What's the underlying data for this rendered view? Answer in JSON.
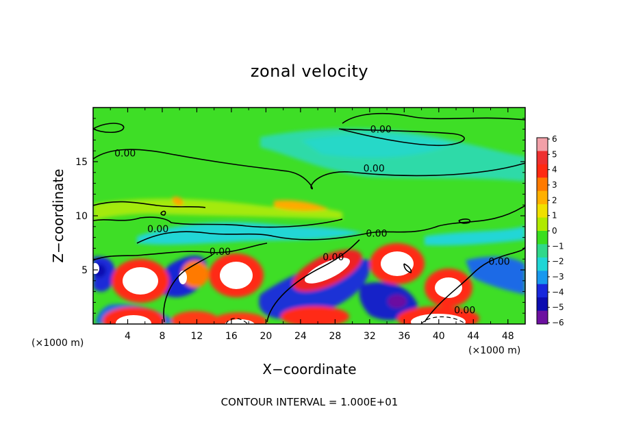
{
  "chart_data": {
    "type": "heatmap",
    "title": "zonal velocity",
    "xlabel": "X−coordinate",
    "ylabel": "Z−coordinate",
    "x_unit_left": "(×1000 m)",
    "x_unit_right": "(×1000 m)",
    "xlim": [
      0,
      50
    ],
    "ylim": [
      0,
      20
    ],
    "x_ticks": [
      4,
      8,
      12,
      16,
      20,
      24,
      28,
      32,
      36,
      40,
      44,
      48
    ],
    "y_ticks": [
      5,
      10,
      15
    ],
    "colorbar": {
      "min": -6,
      "max": 6,
      "ticks": [
        6,
        5,
        4,
        3,
        2,
        1,
        0,
        -1,
        -2,
        -3,
        -4,
        -5,
        -6
      ],
      "tick_labels": [
        "6",
        "5",
        "4",
        "3",
        "2",
        "1",
        "0",
        "−1",
        "−2",
        "−3",
        "−4",
        "−5",
        "−6"
      ],
      "colors": [
        "#f2a0a8",
        "#ee3030",
        "#ff2a12",
        "#ff7a00",
        "#ffb000",
        "#f0e000",
        "#b0ea00",
        "#3ade1e",
        "#30d88a",
        "#20d6d6",
        "#1898ee",
        "#1828dc",
        "#0c0cb0",
        "#6c10a0"
      ]
    },
    "contour_labels": [
      {
        "text": "0.00",
        "x": 33.3,
        "y": 18.0
      },
      {
        "text": "0.00",
        "x": 3.7,
        "y": 15.8
      },
      {
        "text": "0.00",
        "x": 32.5,
        "y": 14.4
      },
      {
        "text": "0.00",
        "x": 7.5,
        "y": 8.8
      },
      {
        "text": "0.00",
        "x": 14.7,
        "y": 6.7
      },
      {
        "text": "0.00",
        "x": 27.8,
        "y": 6.2
      },
      {
        "text": "0.00",
        "x": 32.8,
        "y": 8.4
      },
      {
        "text": "0.00",
        "x": 47.0,
        "y": 5.8
      },
      {
        "text": "0.00",
        "x": 43.0,
        "y": 1.3
      }
    ],
    "features": [
      {
        "kind": "positive-max",
        "x": 6.0,
        "y": 4.0
      },
      {
        "kind": "positive-max",
        "x": 16.0,
        "y": 4.5
      },
      {
        "kind": "positive-max",
        "x": 28.0,
        "y": 5.0
      },
      {
        "kind": "positive-max",
        "x": 36.0,
        "y": 5.5
      },
      {
        "kind": "positive-max",
        "x": 40.0,
        "y": 3.2
      },
      {
        "kind": "positive-max",
        "x": 5.5,
        "y": 0.5
      },
      {
        "kind": "positive-max",
        "x": 11.0,
        "y": 0.3
      },
      {
        "kind": "positive-max",
        "x": 18.0,
        "y": 0.4
      },
      {
        "kind": "positive-max",
        "x": 26.0,
        "y": 0.6
      },
      {
        "kind": "positive-max",
        "x": 41.0,
        "y": 0.5
      },
      {
        "kind": "negative-max",
        "x": 1.5,
        "y": 5.0
      },
      {
        "kind": "negative-max",
        "x": 11.0,
        "y": 4.3
      },
      {
        "kind": "negative-max",
        "x": 22.0,
        "y": 3.0
      },
      {
        "kind": "negative-max",
        "x": 34.0,
        "y": 2.0
      },
      {
        "kind": "negative-max",
        "x": 47.0,
        "y": 4.2
      },
      {
        "kind": "negative-max",
        "x": 8.0,
        "y": 2.0
      }
    ],
    "footer": "CONTOUR INTERVAL = 1.000E+01"
  }
}
